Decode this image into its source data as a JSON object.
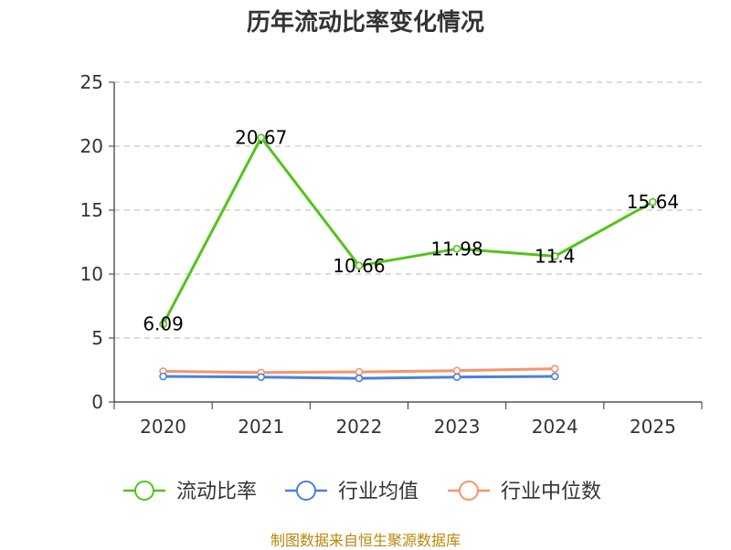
{
  "chart_data": {
    "type": "line",
    "title": "历年流动比率变化情况",
    "categories": [
      "2020",
      "2021",
      "2022",
      "2023",
      "2024",
      "2025"
    ],
    "y_ticks": [
      "0",
      "5",
      "10",
      "15",
      "20",
      "25"
    ],
    "ylim": [
      0,
      25
    ],
    "grid": "horizontal dashed",
    "legend_position": "bottom",
    "series": [
      {
        "name": "流动比率",
        "color": "#52c41a",
        "values": [
          6.09,
          20.67,
          10.66,
          11.98,
          11.4,
          15.64
        ],
        "labels": [
          "6.09",
          "20.67",
          "10.66",
          "11.98",
          "11.4",
          "15.64"
        ]
      },
      {
        "name": "行业均值",
        "color": "#4a7fe0",
        "values": [
          2.0,
          1.95,
          1.85,
          1.95,
          2.0,
          null
        ]
      },
      {
        "name": "行业中位数",
        "color": "#f5956b",
        "values": [
          2.4,
          2.3,
          2.35,
          2.45,
          2.6,
          null
        ]
      }
    ]
  },
  "source_note": "制图数据来自恒生聚源数据库"
}
